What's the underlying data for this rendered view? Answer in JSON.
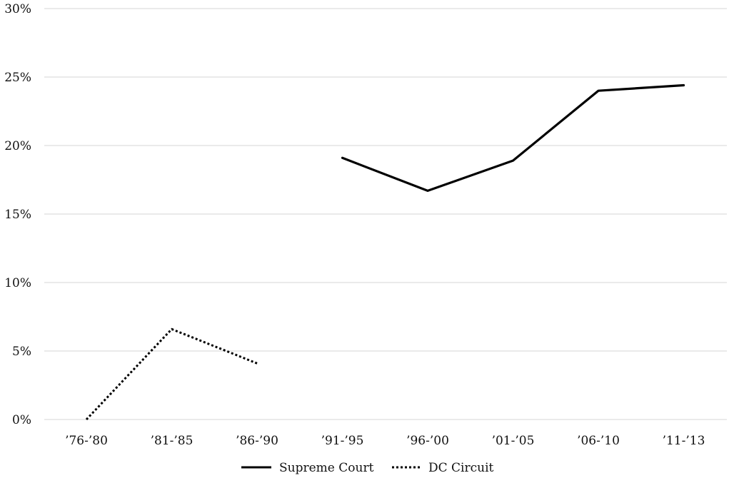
{
  "chart_data": {
    "type": "line",
    "categories": [
      "’76-’80",
      "’81-’85",
      "’86-’90",
      "’91-’95",
      "’96-’00",
      "’01-’05",
      "’06-’10",
      "’11-’13"
    ],
    "series": [
      {
        "name": "Supreme Court",
        "style": "solid",
        "color": "#000000",
        "values": [
          null,
          null,
          null,
          19.1,
          16.7,
          18.9,
          24.0,
          24.4
        ]
      },
      {
        "name": "DC Circuit",
        "style": "dotted",
        "color": "#000000",
        "values": [
          0.0,
          6.6,
          4.1,
          null,
          null,
          null,
          null,
          null
        ]
      }
    ],
    "title": "",
    "xlabel": "",
    "ylabel": "",
    "ylim": [
      0,
      30
    ],
    "yticks": [
      "0%",
      "5%",
      "10%",
      "15%",
      "20%",
      "25%",
      "30%"
    ],
    "grid": true,
    "legend": "bottom"
  }
}
